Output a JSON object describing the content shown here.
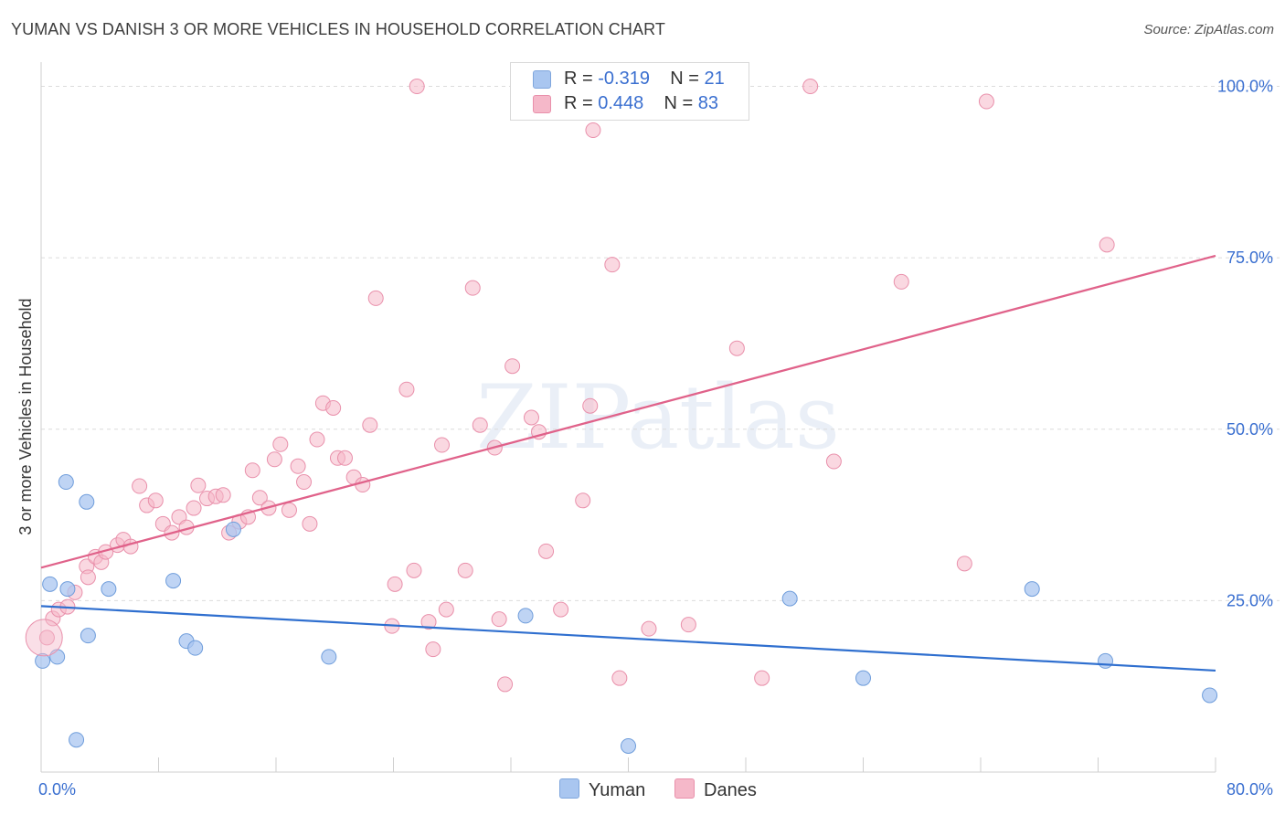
{
  "title": "YUMAN VS DANISH 3 OR MORE VEHICLES IN HOUSEHOLD CORRELATION CHART",
  "source": "Source: ZipAtlas.com",
  "watermark": "ZIPatlas",
  "legend": {
    "rows": [
      {
        "r_label": "R = ",
        "r_value": "-0.319",
        "n_label": "N = ",
        "n_value": "21",
        "color": "#a9c6f0"
      },
      {
        "r_label": "R = ",
        "r_value": "0.448",
        "n_label": "N = ",
        "n_value": "83",
        "color": "#f5b8c9"
      }
    ]
  },
  "bottom_legend": [
    {
      "label": "Yuman",
      "color": "#a9c6f0"
    },
    {
      "label": "Danes",
      "color": "#f5b8c9"
    }
  ],
  "chart_data": {
    "type": "scatter",
    "title": "YUMAN VS DANISH 3 OR MORE VEHICLES IN HOUSEHOLD CORRELATION CHART",
    "xlabel": "",
    "ylabel": "3 or more Vehicles in Household",
    "xlim": [
      0,
      80
    ],
    "ylim": [
      0,
      100
    ],
    "x_tick_labels": [
      "0.0%",
      "80.0%"
    ],
    "y_tick_labels": [
      "25.0%",
      "50.0%",
      "75.0%",
      "100.0%"
    ],
    "y_ticks": [
      25,
      50,
      75,
      100
    ],
    "grid": true,
    "series": [
      {
        "name": "Yuman",
        "color": "#a9c6f0",
        "stroke": "#6f9ddb",
        "trend_color": "#2f6fcf",
        "trend": {
          "x": [
            0,
            80
          ],
          "y": [
            24.2,
            14.8
          ]
        },
        "points": [
          [
            0.1,
            16.2
          ],
          [
            1.1,
            16.8
          ],
          [
            0.6,
            27.4
          ],
          [
            1.8,
            26.7
          ],
          [
            1.7,
            42.3
          ],
          [
            3.1,
            39.4
          ],
          [
            3.2,
            19.9
          ],
          [
            2.4,
            4.7
          ],
          [
            4.6,
            26.7
          ],
          [
            9.0,
            27.9
          ],
          [
            9.9,
            19.1
          ],
          [
            10.5,
            18.1
          ],
          [
            13.1,
            35.4
          ],
          [
            19.6,
            16.8
          ],
          [
            33.0,
            22.8
          ],
          [
            40.0,
            3.8
          ],
          [
            51.0,
            25.3
          ],
          [
            56.0,
            13.7
          ],
          [
            67.5,
            26.7
          ],
          [
            72.5,
            16.2
          ],
          [
            79.6,
            11.2
          ]
        ]
      },
      {
        "name": "Danes",
        "color": "#f5b8c9",
        "stroke": "#e990ab",
        "trend_color": "#e0628a",
        "trend": {
          "x": [
            0,
            80
          ],
          "y": [
            29.8,
            75.3
          ]
        },
        "points": [
          [
            0.4,
            19.6
          ],
          [
            0.8,
            22.4
          ],
          [
            1.2,
            23.7
          ],
          [
            1.8,
            24.1
          ],
          [
            2.3,
            26.2
          ],
          [
            3.1,
            30.0
          ],
          [
            3.2,
            28.4
          ],
          [
            3.7,
            31.4
          ],
          [
            4.1,
            30.6
          ],
          [
            4.4,
            32.1
          ],
          [
            5.2,
            33.1
          ],
          [
            5.6,
            33.9
          ],
          [
            6.1,
            32.9
          ],
          [
            6.7,
            41.7
          ],
          [
            7.2,
            38.9
          ],
          [
            7.8,
            39.6
          ],
          [
            8.3,
            36.2
          ],
          [
            8.9,
            34.9
          ],
          [
            9.4,
            37.2
          ],
          [
            9.9,
            35.7
          ],
          [
            10.4,
            38.5
          ],
          [
            10.7,
            41.8
          ],
          [
            11.3,
            39.9
          ],
          [
            11.9,
            40.2
          ],
          [
            12.4,
            40.4
          ],
          [
            12.8,
            34.9
          ],
          [
            13.5,
            36.5
          ],
          [
            14.1,
            37.2
          ],
          [
            14.4,
            44.0
          ],
          [
            14.9,
            40.0
          ],
          [
            15.5,
            38.5
          ],
          [
            15.9,
            45.6
          ],
          [
            16.3,
            47.8
          ],
          [
            16.9,
            38.2
          ],
          [
            17.5,
            44.6
          ],
          [
            17.9,
            42.3
          ],
          [
            18.3,
            36.2
          ],
          [
            18.8,
            48.5
          ],
          [
            19.2,
            53.8
          ],
          [
            19.9,
            53.1
          ],
          [
            20.2,
            45.8
          ],
          [
            20.7,
            45.8
          ],
          [
            21.3,
            43.0
          ],
          [
            21.9,
            41.9
          ],
          [
            22.4,
            50.6
          ],
          [
            22.8,
            69.1
          ],
          [
            23.9,
            21.3
          ],
          [
            24.1,
            27.4
          ],
          [
            24.9,
            55.8
          ],
          [
            25.4,
            29.4
          ],
          [
            25.6,
            100.0
          ],
          [
            26.4,
            21.9
          ],
          [
            26.7,
            17.9
          ],
          [
            27.3,
            47.7
          ],
          [
            27.6,
            23.7
          ],
          [
            28.9,
            29.4
          ],
          [
            29.4,
            70.6
          ],
          [
            29.9,
            50.6
          ],
          [
            30.9,
            47.3
          ],
          [
            31.2,
            22.3
          ],
          [
            31.6,
            12.8
          ],
          [
            32.1,
            59.2
          ],
          [
            33.4,
            51.7
          ],
          [
            33.9,
            49.6
          ],
          [
            34.4,
            32.2
          ],
          [
            35.4,
            23.7
          ],
          [
            36.9,
            39.6
          ],
          [
            37.4,
            53.4
          ],
          [
            37.6,
            93.6
          ],
          [
            38.9,
            74.0
          ],
          [
            39.4,
            13.7
          ],
          [
            41.4,
            20.9
          ],
          [
            43.4,
            100.0
          ],
          [
            44.1,
            21.5
          ],
          [
            47.4,
            61.8
          ],
          [
            49.1,
            13.7
          ],
          [
            52.4,
            100.0
          ],
          [
            54.0,
            45.3
          ],
          [
            58.6,
            71.5
          ],
          [
            62.9,
            30.4
          ],
          [
            64.4,
            97.8
          ],
          [
            72.6,
            76.9
          ],
          [
            45.0,
            100.0
          ]
        ]
      }
    ]
  }
}
